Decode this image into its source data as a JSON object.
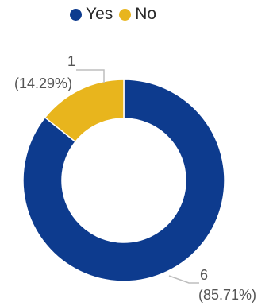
{
  "chart_data": {
    "type": "pie",
    "variant": "donut",
    "legend_position": "top",
    "series": [
      {
        "name": "Yes",
        "value": 6,
        "percent_label": "(85.71%)",
        "value_label": "6",
        "color": "#0d3b8e"
      },
      {
        "name": "No",
        "value": 1,
        "percent_label": "(14.29%)",
        "value_label": "1",
        "color": "#e8b51d"
      }
    ]
  }
}
